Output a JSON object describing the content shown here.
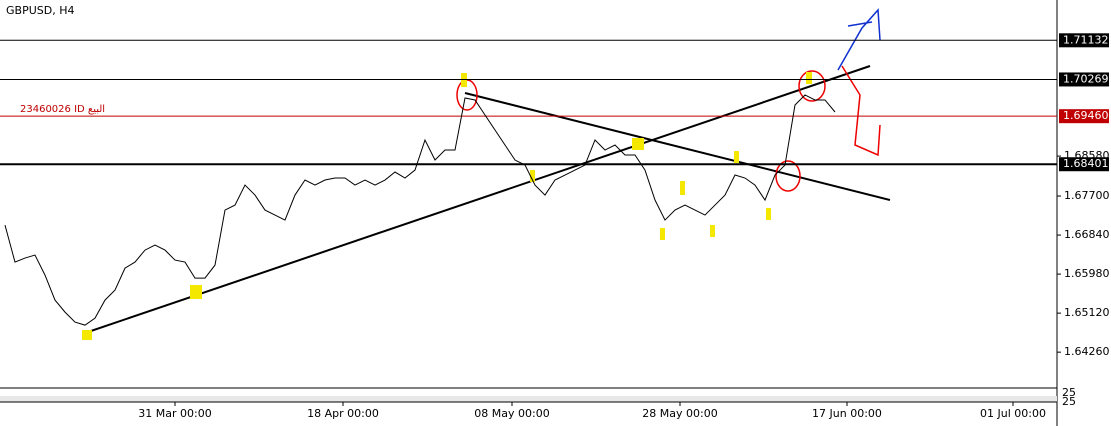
{
  "chart_data": {
    "type": "line",
    "title": "GBPUSD, H4",
    "x": [
      0,
      1,
      2,
      3,
      4,
      5,
      6,
      7,
      8,
      9,
      10,
      11,
      12,
      13,
      14,
      15,
      16,
      17,
      18,
      19,
      20,
      21,
      22,
      23,
      24,
      25,
      26,
      27,
      28,
      29,
      30,
      31,
      32,
      33,
      34,
      35,
      36,
      37,
      38,
      39,
      40,
      41,
      42,
      43,
      44,
      45,
      46,
      47,
      48,
      49,
      50,
      51,
      52,
      53,
      54,
      55,
      56,
      57,
      58,
      59,
      60,
      61,
      62,
      63,
      64,
      65,
      66,
      67,
      68,
      69,
      70,
      71,
      72,
      73,
      74,
      75,
      76,
      77,
      78,
      79,
      80,
      81,
      82,
      83
    ],
    "series": [
      {
        "name": "GBPUSD",
        "color": "#000000",
        "values": [
          1.6706,
          1.66245,
          1.66333,
          1.66399,
          1.65958,
          1.65407,
          1.65142,
          1.64922,
          1.64855,
          1.6501,
          1.65407,
          1.65627,
          1.66112,
          1.66245,
          1.66509,
          1.66619,
          1.66509,
          1.66289,
          1.66245,
          1.65892,
          1.65892,
          1.66178,
          1.67391,
          1.67501,
          1.67942,
          1.67722,
          1.67391,
          1.67281,
          1.67171,
          1.67722,
          1.68053,
          1.67942,
          1.68053,
          1.68097,
          1.68097,
          1.67942,
          1.68053,
          1.67942,
          1.68053,
          1.68229,
          1.68097,
          1.68273,
          1.68935,
          1.68494,
          1.68714,
          1.68714,
          1.69861,
          1.69817,
          1.69486,
          1.69155,
          1.68824,
          1.68494,
          1.68383,
          1.67942,
          1.67722,
          1.68053,
          1.68163,
          1.68273,
          1.68383,
          1.68935,
          1.68714,
          1.68824,
          1.68604,
          1.68604,
          1.68273,
          1.67612,
          1.67171,
          1.67391,
          1.67501,
          1.67391,
          1.67281,
          1.67501,
          1.67722,
          1.68163,
          1.68097,
          1.67942,
          1.67612,
          1.68163,
          1.68383,
          1.69706,
          1.69927,
          1.69817,
          1.69817,
          1.69552
        ]
      }
    ],
    "xlim": [
      0,
      105.2
    ],
    "xticks": [
      {
        "value": 17,
        "label": "31 Mar 00:00"
      },
      {
        "value": 33.8,
        "label": "18 Apr 00:00"
      },
      {
        "value": 50.7,
        "label": "08 May 00:00"
      },
      {
        "value": 67.5,
        "label": "28 May 00:00"
      },
      {
        "value": 84.2,
        "label": "17 Jun 00:00"
      },
      {
        "value": 100.8,
        "label": "01 Jul 00:00"
      }
    ],
    "ylim": [
      1.6347,
      1.7202
    ],
    "yticks": [
      {
        "value": 1.6858,
        "label": "1.68580"
      },
      {
        "value": 1.677,
        "label": "1.67700"
      },
      {
        "value": 1.6684,
        "label": "1.66840"
      },
      {
        "value": 1.6598,
        "label": "1.65980"
      },
      {
        "value": 1.6512,
        "label": "1.65120"
      },
      {
        "value": 1.6426,
        "label": "1.64260"
      }
    ],
    "levels": [
      {
        "value": 1.71132,
        "color": "#000000"
      },
      {
        "value": 1.70269,
        "color": "#000000"
      },
      {
        "value": {
          "value": 1.6946,
          "label": "1.69460"
        },
        "color": "#c00000",
        "note": "23460026 ID البيع"
      },
      {
        "value": 1.68401,
        "color": "#000000"
      }
    ],
    "indicator_labels": [
      "25",
      "25"
    ]
  }
}
